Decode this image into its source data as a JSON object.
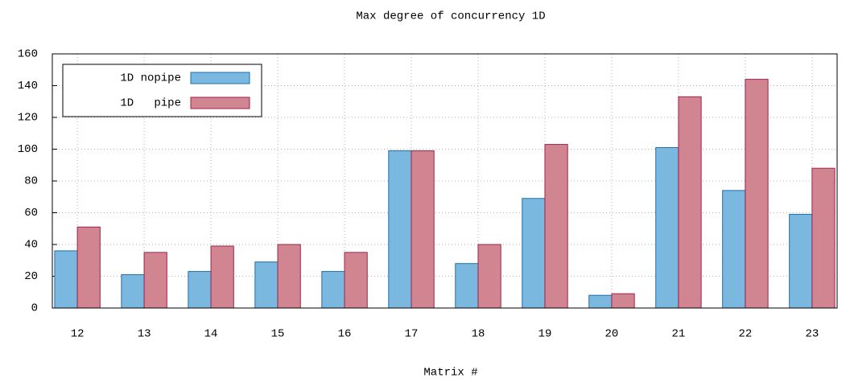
{
  "chart_data": {
    "type": "bar",
    "title": "Max degree of concurrency 1D",
    "x_label": "Matrix #",
    "categories": [
      "12",
      "13",
      "14",
      "15",
      "16",
      "17",
      "18",
      "19",
      "20",
      "21",
      "22",
      "23"
    ],
    "series": [
      {
        "name": "1D nopipe",
        "color": "#7ab8e0",
        "stroke": "#1f6fae",
        "values": [
          36,
          21,
          23,
          29,
          23,
          99,
          28,
          69,
          8,
          101,
          74,
          59
        ]
      },
      {
        "name": "1D   pipe",
        "color": "#d08590",
        "stroke": "#a0224c",
        "values": [
          51,
          35,
          39,
          40,
          35,
          99,
          40,
          103,
          9,
          133,
          144,
          88
        ]
      }
    ],
    "ylim": [
      0,
      160
    ],
    "yticks": [
      0,
      20,
      40,
      60,
      80,
      100,
      120,
      140,
      160
    ],
    "grid": true,
    "legend": "top-left"
  }
}
